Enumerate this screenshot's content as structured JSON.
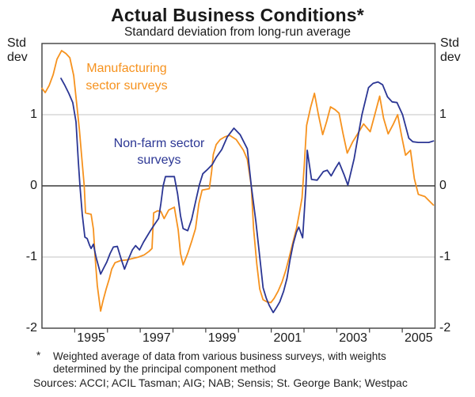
{
  "header": {
    "title": "Actual Business Conditions*",
    "subtitle": "Standard deviation from long-run average"
  },
  "axes": {
    "unit_line1": "Std",
    "unit_line2": "dev",
    "y_tick_values": [
      1,
      0,
      -1,
      -2
    ],
    "y_tick_labels": [
      "1",
      "0",
      "-1",
      "-2"
    ],
    "x_tick_labels": [
      "1995",
      "1997",
      "1999",
      "2001",
      "2003",
      "2005"
    ]
  },
  "legend": [
    {
      "line1": "Manufacturing",
      "line2": "sector surveys"
    },
    {
      "line1": "Non-farm sector",
      "line2": "surveys"
    }
  ],
  "footnotes": {
    "marker": "*",
    "line1": "Weighted average of data from various business surveys, with weights",
    "line2": "determined by the principal component method",
    "sources": "Sources: ACCI; ACIL Tasman; AIG; NAB; Sensis; St. George Bank; Westpac"
  },
  "colors": {
    "manufacturing": "#f6921e",
    "nonfarm": "#2b3694",
    "frame": "#3f3f3f",
    "zero_line": "#111111",
    "gridline": "#c3c3c3"
  },
  "chart_data": {
    "type": "line",
    "title": "Actual Business Conditions*",
    "subtitle": "Standard deviation from long-run average",
    "ylabel": "Std dev",
    "ylim": [
      -2,
      2
    ],
    "x_range_years": [
      1994,
      2006
    ],
    "x_label_years": [
      1995,
      1997,
      1999,
      2001,
      2003,
      2005
    ],
    "x_tick_years": [
      1995,
      1996,
      1997,
      1998,
      1999,
      2000,
      2001,
      2002,
      2003,
      2004,
      2005
    ],
    "gridlines_y": [
      1,
      -1
    ],
    "zero_line": true,
    "grid": "horizontal-light",
    "legend_position": "inside-top-left",
    "series": [
      {
        "name": "Manufacturing sector surveys",
        "color": "#f6921e",
        "points": [
          [
            1994.0,
            1.37
          ],
          [
            1994.1,
            1.31
          ],
          [
            1994.22,
            1.41
          ],
          [
            1994.34,
            1.56
          ],
          [
            1994.46,
            1.78
          ],
          [
            1994.6,
            1.9
          ],
          [
            1994.73,
            1.86
          ],
          [
            1994.85,
            1.8
          ],
          [
            1994.97,
            1.55
          ],
          [
            1995.06,
            1.15
          ],
          [
            1995.14,
            0.8
          ],
          [
            1995.21,
            0.42
          ],
          [
            1995.29,
            0.0
          ],
          [
            1995.33,
            -0.38
          ],
          [
            1995.5,
            -0.4
          ],
          [
            1995.57,
            -0.61
          ],
          [
            1995.62,
            -0.98
          ],
          [
            1995.69,
            -1.4
          ],
          [
            1995.79,
            -1.76
          ],
          [
            1995.86,
            -1.62
          ],
          [
            1995.96,
            -1.45
          ],
          [
            1996.06,
            -1.3
          ],
          [
            1996.13,
            -1.17
          ],
          [
            1996.23,
            -1.08
          ],
          [
            1996.4,
            -1.05
          ],
          [
            1996.59,
            -1.04
          ],
          [
            1996.78,
            -1.02
          ],
          [
            1996.95,
            -1.0
          ],
          [
            1997.12,
            -0.97
          ],
          [
            1997.27,
            -0.92
          ],
          [
            1997.36,
            -0.88
          ],
          [
            1997.41,
            -0.38
          ],
          [
            1997.53,
            -0.35
          ],
          [
            1997.63,
            -0.36
          ],
          [
            1997.73,
            -0.46
          ],
          [
            1997.87,
            -0.34
          ],
          [
            1998.04,
            -0.3
          ],
          [
            1998.16,
            -0.62
          ],
          [
            1998.23,
            -0.95
          ],
          [
            1998.31,
            -1.11
          ],
          [
            1998.45,
            -0.95
          ],
          [
            1998.57,
            -0.78
          ],
          [
            1998.69,
            -0.6
          ],
          [
            1998.79,
            -0.25
          ],
          [
            1998.89,
            -0.06
          ],
          [
            1999.11,
            -0.04
          ],
          [
            1999.18,
            0.2
          ],
          [
            1999.23,
            0.44
          ],
          [
            1999.32,
            0.58
          ],
          [
            1999.44,
            0.65
          ],
          [
            1999.59,
            0.69
          ],
          [
            1999.73,
            0.71
          ],
          [
            1999.93,
            0.65
          ],
          [
            2000.15,
            0.5
          ],
          [
            2000.27,
            0.37
          ],
          [
            2000.39,
            0.0
          ],
          [
            2000.46,
            -0.6
          ],
          [
            2000.56,
            -1.1
          ],
          [
            2000.65,
            -1.45
          ],
          [
            2000.75,
            -1.6
          ],
          [
            2000.87,
            -1.63
          ],
          [
            2000.99,
            -1.64
          ],
          [
            2001.09,
            -1.58
          ],
          [
            2001.21,
            -1.48
          ],
          [
            2001.33,
            -1.35
          ],
          [
            2001.45,
            -1.18
          ],
          [
            2001.55,
            -1.0
          ],
          [
            2001.67,
            -0.78
          ],
          [
            2001.77,
            -0.6
          ],
          [
            2001.86,
            -0.38
          ],
          [
            2001.94,
            -0.17
          ],
          [
            2002.01,
            0.3
          ],
          [
            2002.08,
            0.85
          ],
          [
            2002.2,
            1.1
          ],
          [
            2002.32,
            1.3
          ],
          [
            2002.44,
            1.0
          ],
          [
            2002.57,
            0.72
          ],
          [
            2002.69,
            0.9
          ],
          [
            2002.81,
            1.11
          ],
          [
            2002.95,
            1.07
          ],
          [
            2003.07,
            1.02
          ],
          [
            2003.19,
            0.74
          ],
          [
            2003.32,
            0.46
          ],
          [
            2003.49,
            0.62
          ],
          [
            2003.65,
            0.74
          ],
          [
            2003.82,
            0.87
          ],
          [
            2004.02,
            0.76
          ],
          [
            2004.16,
            1.0
          ],
          [
            2004.31,
            1.26
          ],
          [
            2004.43,
            0.95
          ],
          [
            2004.57,
            0.73
          ],
          [
            2004.72,
            0.86
          ],
          [
            2004.86,
            1.0
          ],
          [
            2004.98,
            0.7
          ],
          [
            2005.1,
            0.43
          ],
          [
            2005.25,
            0.5
          ],
          [
            2005.37,
            0.1
          ],
          [
            2005.49,
            -0.12
          ],
          [
            2005.69,
            -0.15
          ],
          [
            2005.95,
            -0.27
          ]
        ]
      },
      {
        "name": "Non-farm sector surveys",
        "color": "#2b3694",
        "points": [
          [
            1994.58,
            1.51
          ],
          [
            1994.7,
            1.41
          ],
          [
            1994.82,
            1.3
          ],
          [
            1994.94,
            1.17
          ],
          [
            1995.04,
            0.9
          ],
          [
            1995.11,
            0.35
          ],
          [
            1995.16,
            0.0
          ],
          [
            1995.23,
            -0.4
          ],
          [
            1995.31,
            -0.72
          ],
          [
            1995.38,
            -0.74
          ],
          [
            1995.45,
            -0.83
          ],
          [
            1995.5,
            -0.88
          ],
          [
            1995.57,
            -0.82
          ],
          [
            1995.65,
            -1.0
          ],
          [
            1995.72,
            -1.12
          ],
          [
            1995.79,
            -1.24
          ],
          [
            1995.89,
            -1.15
          ],
          [
            1995.98,
            -1.07
          ],
          [
            1996.08,
            -0.95
          ],
          [
            1996.18,
            -0.86
          ],
          [
            1996.3,
            -0.85
          ],
          [
            1996.42,
            -1.03
          ],
          [
            1996.52,
            -1.17
          ],
          [
            1996.64,
            -1.03
          ],
          [
            1996.76,
            -0.9
          ],
          [
            1996.86,
            -0.84
          ],
          [
            1996.98,
            -0.9
          ],
          [
            1997.1,
            -0.79
          ],
          [
            1997.22,
            -0.7
          ],
          [
            1997.31,
            -0.63
          ],
          [
            1997.44,
            -0.54
          ],
          [
            1997.56,
            -0.46
          ],
          [
            1997.63,
            -0.25
          ],
          [
            1997.7,
            0.0
          ],
          [
            1997.77,
            0.13
          ],
          [
            1998.04,
            0.13
          ],
          [
            1998.14,
            -0.11
          ],
          [
            1998.23,
            -0.42
          ],
          [
            1998.31,
            -0.6
          ],
          [
            1998.45,
            -0.63
          ],
          [
            1998.57,
            -0.47
          ],
          [
            1998.72,
            -0.16
          ],
          [
            1998.81,
            0.02
          ],
          [
            1998.91,
            0.17
          ],
          [
            1999.03,
            0.22
          ],
          [
            1999.2,
            0.3
          ],
          [
            1999.32,
            0.4
          ],
          [
            1999.49,
            0.51
          ],
          [
            1999.66,
            0.69
          ],
          [
            1999.86,
            0.81
          ],
          [
            2000.05,
            0.72
          ],
          [
            2000.27,
            0.52
          ],
          [
            2000.39,
            0.0
          ],
          [
            2000.53,
            -0.5
          ],
          [
            2000.65,
            -1.0
          ],
          [
            2000.75,
            -1.43
          ],
          [
            2000.85,
            -1.58
          ],
          [
            2000.94,
            -1.68
          ],
          [
            2001.06,
            -1.78
          ],
          [
            2001.16,
            -1.71
          ],
          [
            2001.26,
            -1.63
          ],
          [
            2001.38,
            -1.48
          ],
          [
            2001.48,
            -1.3
          ],
          [
            2001.57,
            -1.05
          ],
          [
            2001.67,
            -0.82
          ],
          [
            2001.77,
            -0.65
          ],
          [
            2001.84,
            -0.58
          ],
          [
            2001.96,
            -0.73
          ],
          [
            2002.06,
            0.0
          ],
          [
            2002.1,
            0.5
          ],
          [
            2002.23,
            0.09
          ],
          [
            2002.4,
            0.08
          ],
          [
            2002.59,
            0.2
          ],
          [
            2002.71,
            0.22
          ],
          [
            2002.83,
            0.14
          ],
          [
            2002.95,
            0.24
          ],
          [
            2003.07,
            0.33
          ],
          [
            2003.22,
            0.16
          ],
          [
            2003.34,
            0.01
          ],
          [
            2003.53,
            0.38
          ],
          [
            2003.65,
            0.7
          ],
          [
            2003.77,
            1.0
          ],
          [
            2003.97,
            1.38
          ],
          [
            2004.11,
            1.44
          ],
          [
            2004.26,
            1.46
          ],
          [
            2004.4,
            1.42
          ],
          [
            2004.55,
            1.25
          ],
          [
            2004.69,
            1.18
          ],
          [
            2004.84,
            1.17
          ],
          [
            2005.01,
            1.0
          ],
          [
            2005.2,
            0.67
          ],
          [
            2005.32,
            0.62
          ],
          [
            2005.49,
            0.61
          ],
          [
            2005.66,
            0.61
          ],
          [
            2005.81,
            0.61
          ],
          [
            2005.95,
            0.63
          ]
        ]
      }
    ]
  }
}
